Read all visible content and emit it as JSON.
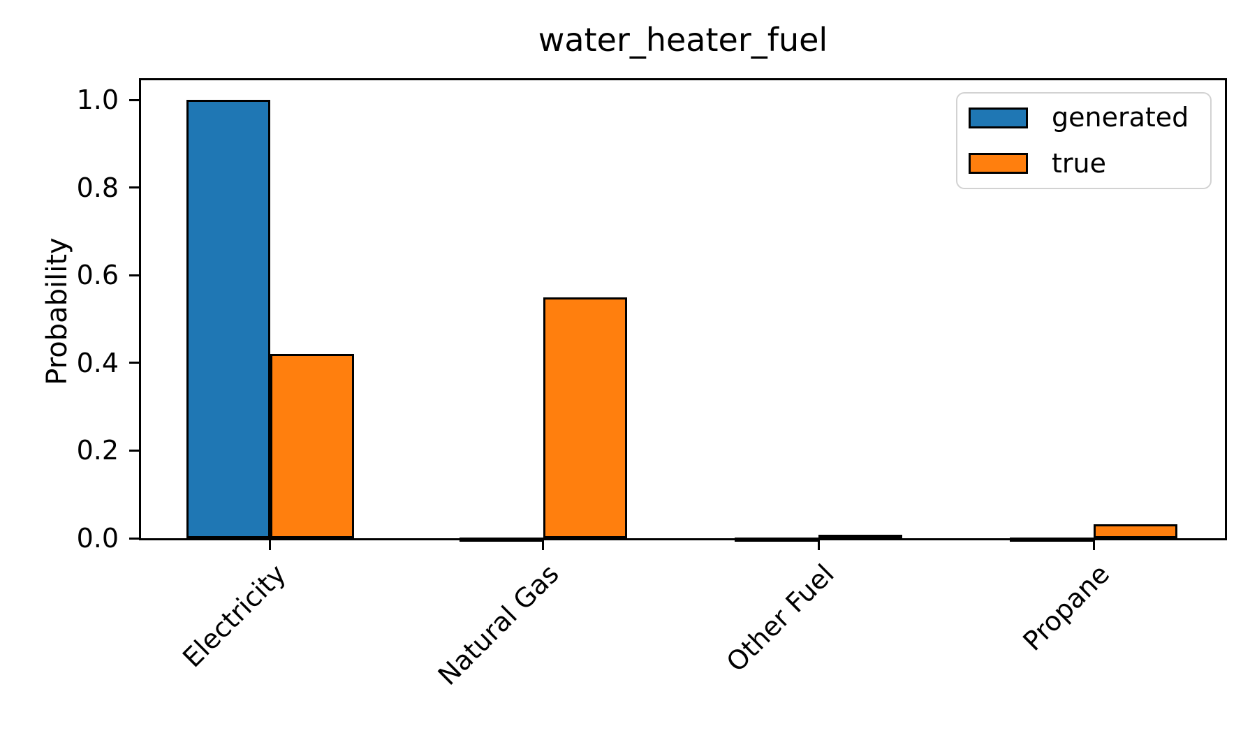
{
  "chart_data": {
    "type": "bar",
    "title": "water_heater_fuel",
    "xlabel": "",
    "ylabel": "Probability",
    "categories": [
      "Electricity",
      "Natural Gas",
      "Other Fuel",
      "Propane"
    ],
    "series": [
      {
        "name": "generated",
        "color": "#1f77b4",
        "values": [
          1.0,
          0.002,
          0.002,
          0.002
        ]
      },
      {
        "name": "true",
        "color": "#ff7f0e",
        "values": [
          0.42,
          0.55,
          0.008,
          0.032
        ]
      }
    ],
    "bar_edge_color": "#000000",
    "ylim": [
      0,
      1.045
    ],
    "yticks": [
      0.0,
      0.2,
      0.4,
      0.6,
      0.8,
      1.0
    ],
    "ytick_labels": [
      "0.0",
      "0.2",
      "0.4",
      "0.6",
      "0.8",
      "1.0"
    ],
    "grid": false,
    "legend_position": "upper right",
    "legend_labels": [
      "generated",
      "true"
    ]
  }
}
